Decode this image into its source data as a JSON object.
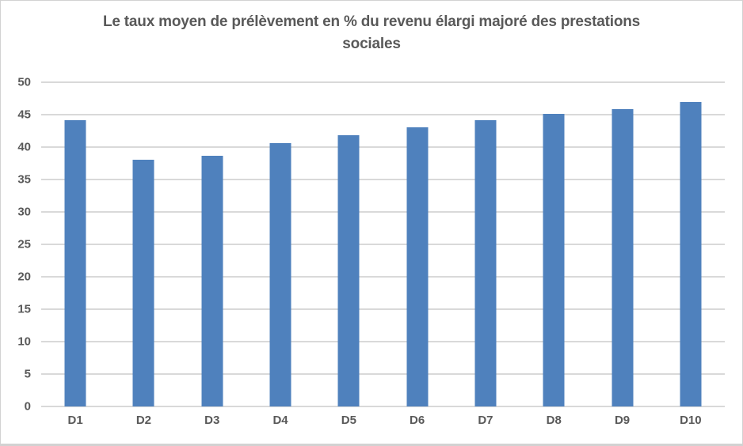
{
  "chart_data": {
    "type": "bar",
    "title": "Le taux moyen de prélèvement en % du revenu élargi majoré des prestations sociales",
    "categories": [
      "D1",
      "D2",
      "D3",
      "D4",
      "D5",
      "D6",
      "D7",
      "D8",
      "D9",
      "D10"
    ],
    "values": [
      44.2,
      38.1,
      38.6,
      40.6,
      41.8,
      43.0,
      44.2,
      45.1,
      45.8,
      47.0
    ],
    "xlabel": "",
    "ylabel": "",
    "ylim": [
      0,
      50
    ],
    "yticks": [
      0,
      5,
      10,
      15,
      20,
      25,
      30,
      35,
      40,
      45,
      50
    ],
    "grid": "horizontal",
    "legend": "none",
    "colors": {
      "bar": "#4f81bd",
      "gridline": "#d9d9d9",
      "text": "#595959",
      "border": "#d2d2d2",
      "background": "#ffffff"
    }
  }
}
